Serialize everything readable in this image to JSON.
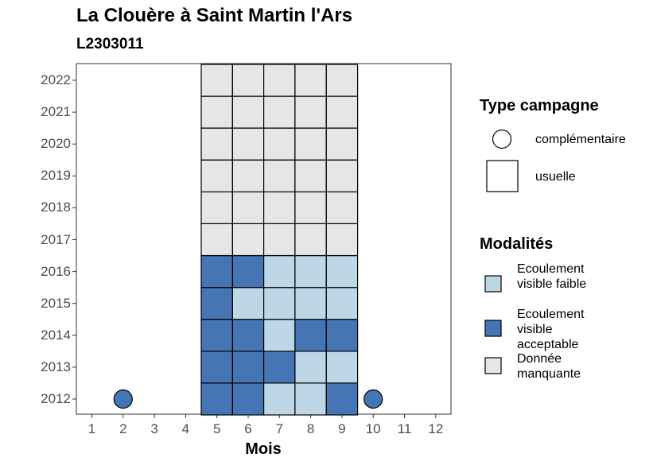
{
  "chart_data": {
    "type": "heatmap",
    "title": "La Clouère à Saint Martin l'Ars",
    "subtitle": "L2303011",
    "xlabel": "Mois",
    "ylabel": "",
    "x_ticks": [
      "1",
      "2",
      "3",
      "4",
      "5",
      "6",
      "7",
      "8",
      "9",
      "10",
      "11",
      "12"
    ],
    "y_ticks": [
      "2012",
      "2013",
      "2014",
      "2015",
      "2016",
      "2017",
      "2018",
      "2019",
      "2020",
      "2021",
      "2022"
    ],
    "grid": false,
    "legend_position": "right",
    "legend": {
      "type_title": "Type campagne",
      "types": [
        {
          "key": "complementaire",
          "label": "complémentaire",
          "shape": "circle"
        },
        {
          "key": "usuelle",
          "label": "usuelle",
          "shape": "square"
        }
      ],
      "modalites_title": "Modalités",
      "modalites": [
        {
          "key": "faible",
          "label": "Ecoulement visible faible",
          "color": "#bdd7e7"
        },
        {
          "key": "acceptable",
          "label": "Ecoulement visible acceptable",
          "color": "#4575b4"
        },
        {
          "key": "manquante",
          "label": "Donnée manquante",
          "color": "#e6e6e6"
        }
      ]
    },
    "cells": [
      {
        "year": 2012,
        "month": 2,
        "type": "complementaire",
        "modalite": "acceptable"
      },
      {
        "year": 2012,
        "month": 5,
        "type": "usuelle",
        "modalite": "acceptable"
      },
      {
        "year": 2012,
        "month": 6,
        "type": "usuelle",
        "modalite": "acceptable"
      },
      {
        "year": 2012,
        "month": 7,
        "type": "usuelle",
        "modalite": "faible"
      },
      {
        "year": 2012,
        "month": 8,
        "type": "usuelle",
        "modalite": "faible"
      },
      {
        "year": 2012,
        "month": 9,
        "type": "usuelle",
        "modalite": "acceptable"
      },
      {
        "year": 2012,
        "month": 10,
        "type": "complementaire",
        "modalite": "acceptable"
      },
      {
        "year": 2013,
        "month": 5,
        "type": "usuelle",
        "modalite": "acceptable"
      },
      {
        "year": 2013,
        "month": 6,
        "type": "usuelle",
        "modalite": "acceptable"
      },
      {
        "year": 2013,
        "month": 7,
        "type": "usuelle",
        "modalite": "acceptable"
      },
      {
        "year": 2013,
        "month": 8,
        "type": "usuelle",
        "modalite": "faible"
      },
      {
        "year": 2013,
        "month": 9,
        "type": "usuelle",
        "modalite": "faible"
      },
      {
        "year": 2014,
        "month": 5,
        "type": "usuelle",
        "modalite": "acceptable"
      },
      {
        "year": 2014,
        "month": 6,
        "type": "usuelle",
        "modalite": "acceptable"
      },
      {
        "year": 2014,
        "month": 7,
        "type": "usuelle",
        "modalite": "faible"
      },
      {
        "year": 2014,
        "month": 8,
        "type": "usuelle",
        "modalite": "acceptable"
      },
      {
        "year": 2014,
        "month": 9,
        "type": "usuelle",
        "modalite": "acceptable"
      },
      {
        "year": 2015,
        "month": 5,
        "type": "usuelle",
        "modalite": "acceptable"
      },
      {
        "year": 2015,
        "month": 6,
        "type": "usuelle",
        "modalite": "faible"
      },
      {
        "year": 2015,
        "month": 7,
        "type": "usuelle",
        "modalite": "faible"
      },
      {
        "year": 2015,
        "month": 8,
        "type": "usuelle",
        "modalite": "faible"
      },
      {
        "year": 2015,
        "month": 9,
        "type": "usuelle",
        "modalite": "faible"
      },
      {
        "year": 2016,
        "month": 5,
        "type": "usuelle",
        "modalite": "acceptable"
      },
      {
        "year": 2016,
        "month": 6,
        "type": "usuelle",
        "modalite": "acceptable"
      },
      {
        "year": 2016,
        "month": 7,
        "type": "usuelle",
        "modalite": "faible"
      },
      {
        "year": 2016,
        "month": 8,
        "type": "usuelle",
        "modalite": "faible"
      },
      {
        "year": 2016,
        "month": 9,
        "type": "usuelle",
        "modalite": "faible"
      },
      {
        "year": 2017,
        "month": 5,
        "type": "usuelle",
        "modalite": "manquante"
      },
      {
        "year": 2017,
        "month": 6,
        "type": "usuelle",
        "modalite": "manquante"
      },
      {
        "year": 2017,
        "month": 7,
        "type": "usuelle",
        "modalite": "manquante"
      },
      {
        "year": 2017,
        "month": 8,
        "type": "usuelle",
        "modalite": "manquante"
      },
      {
        "year": 2017,
        "month": 9,
        "type": "usuelle",
        "modalite": "manquante"
      },
      {
        "year": 2018,
        "month": 5,
        "type": "usuelle",
        "modalite": "manquante"
      },
      {
        "year": 2018,
        "month": 6,
        "type": "usuelle",
        "modalite": "manquante"
      },
      {
        "year": 2018,
        "month": 7,
        "type": "usuelle",
        "modalite": "manquante"
      },
      {
        "year": 2018,
        "month": 8,
        "type": "usuelle",
        "modalite": "manquante"
      },
      {
        "year": 2018,
        "month": 9,
        "type": "usuelle",
        "modalite": "manquante"
      },
      {
        "year": 2019,
        "month": 5,
        "type": "usuelle",
        "modalite": "manquante"
      },
      {
        "year": 2019,
        "month": 6,
        "type": "usuelle",
        "modalite": "manquante"
      },
      {
        "year": 2019,
        "month": 7,
        "type": "usuelle",
        "modalite": "manquante"
      },
      {
        "year": 2019,
        "month": 8,
        "type": "usuelle",
        "modalite": "manquante"
      },
      {
        "year": 2019,
        "month": 9,
        "type": "usuelle",
        "modalite": "manquante"
      },
      {
        "year": 2020,
        "month": 5,
        "type": "usuelle",
        "modalite": "manquante"
      },
      {
        "year": 2020,
        "month": 6,
        "type": "usuelle",
        "modalite": "manquante"
      },
      {
        "year": 2020,
        "month": 7,
        "type": "usuelle",
        "modalite": "manquante"
      },
      {
        "year": 2020,
        "month": 8,
        "type": "usuelle",
        "modalite": "manquante"
      },
      {
        "year": 2020,
        "month": 9,
        "type": "usuelle",
        "modalite": "manquante"
      },
      {
        "year": 2021,
        "month": 5,
        "type": "usuelle",
        "modalite": "manquante"
      },
      {
        "year": 2021,
        "month": 6,
        "type": "usuelle",
        "modalite": "manquante"
      },
      {
        "year": 2021,
        "month": 7,
        "type": "usuelle",
        "modalite": "manquante"
      },
      {
        "year": 2021,
        "month": 8,
        "type": "usuelle",
        "modalite": "manquante"
      },
      {
        "year": 2021,
        "month": 9,
        "type": "usuelle",
        "modalite": "manquante"
      },
      {
        "year": 2022,
        "month": 5,
        "type": "usuelle",
        "modalite": "manquante"
      },
      {
        "year": 2022,
        "month": 6,
        "type": "usuelle",
        "modalite": "manquante"
      },
      {
        "year": 2022,
        "month": 7,
        "type": "usuelle",
        "modalite": "manquante"
      },
      {
        "year": 2022,
        "month": 8,
        "type": "usuelle",
        "modalite": "manquante"
      },
      {
        "year": 2022,
        "month": 9,
        "type": "usuelle",
        "modalite": "manquante"
      }
    ]
  }
}
